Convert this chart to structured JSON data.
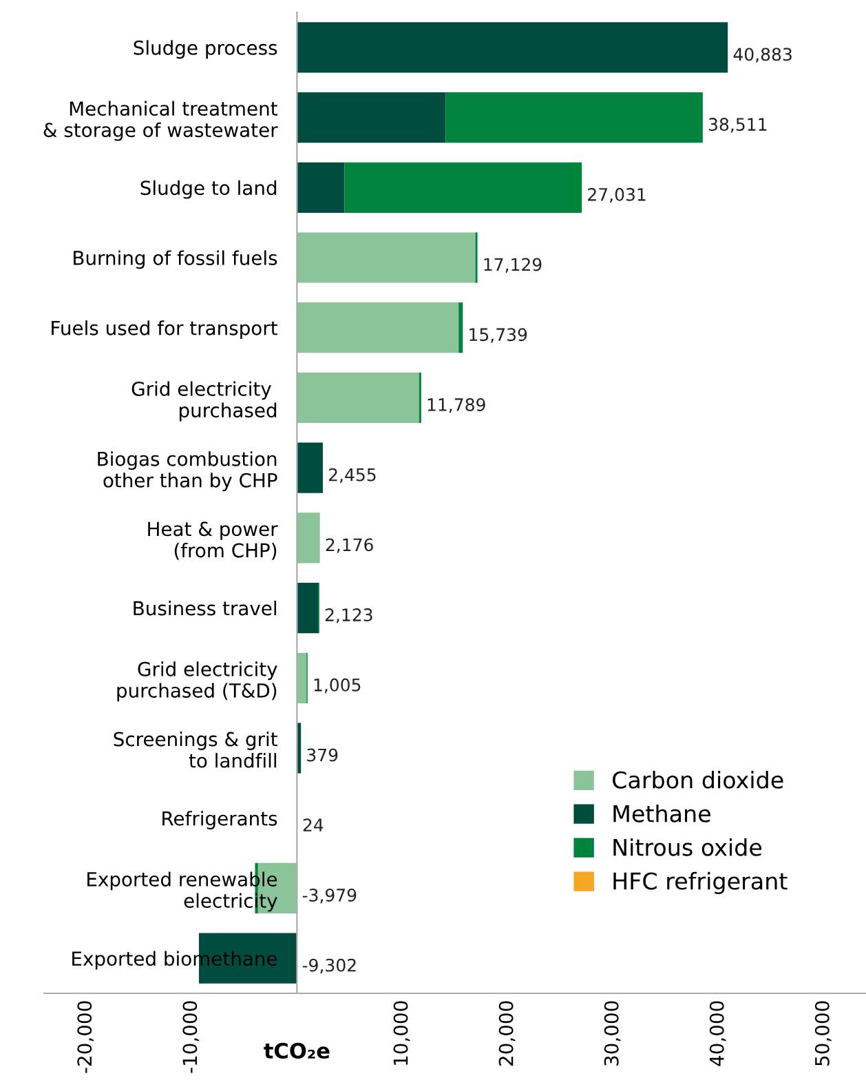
{
  "chart_data": {
    "type": "bar",
    "orientation": "horizontal",
    "stacked": true,
    "xlabel": "tCO₂e",
    "categories": [
      "Sludge process",
      "Mechanical treatment\n& storage of wastewater",
      "Sludge to land",
      "Burning of fossil fuels",
      "Fuels used for transport",
      "Grid electricity \npurchased",
      "Biogas combustion\nother than by CHP",
      "Heat & power\n(from CHP)",
      "Business travel",
      "Grid electricity\npurchased (T&D)",
      "Screenings & grit\nto landfill",
      "Refrigerants",
      "Exported renewable\nelectricity",
      "Exported biomethane"
    ],
    "series": [
      {
        "name": "Carbon dioxide",
        "color": "#8cc49a",
        "values": [
          0,
          0,
          0,
          16929,
          15339,
          11589,
          0,
          2176,
          0,
          905,
          0,
          0,
          -3700,
          0
        ]
      },
      {
        "name": "Methane",
        "color": "#004d40",
        "values": [
          40883,
          14100,
          4500,
          0,
          0,
          0,
          2455,
          0,
          2000,
          0,
          379,
          0,
          0,
          -9302
        ]
      },
      {
        "name": "Nitrous oxide",
        "color": "#00843d",
        "values": [
          0,
          24411,
          22531,
          200,
          400,
          200,
          0,
          0,
          123,
          100,
          0,
          0,
          -279,
          0
        ]
      },
      {
        "name": "HFC refrigerant",
        "color": "#f5a623",
        "values": [
          0,
          0,
          0,
          0,
          0,
          0,
          0,
          0,
          0,
          0,
          0,
          24,
          0,
          0
        ]
      }
    ],
    "totals": [
      "40,883",
      "38,511",
      "27,031",
      "17,129",
      "15,739",
      "11,789",
      "2,455",
      "2,176",
      "2,123",
      "1,005",
      "379",
      "24",
      "-3,979",
      "-9,302"
    ],
    "xlim": [
      -24000,
      54000
    ],
    "xticks": [
      {
        "value": -20000,
        "label": "-20,000"
      },
      {
        "value": -10000,
        "label": "-10,000"
      },
      {
        "value": 0,
        "label": null
      },
      {
        "value": 10000,
        "label": "10,000"
      },
      {
        "value": 20000,
        "label": "20,000"
      },
      {
        "value": 30000,
        "label": "30,000"
      },
      {
        "value": 40000,
        "label": "40,000"
      },
      {
        "value": 50000,
        "label": "50,000"
      }
    ],
    "legend": "bottom right",
    "grid": false
  }
}
